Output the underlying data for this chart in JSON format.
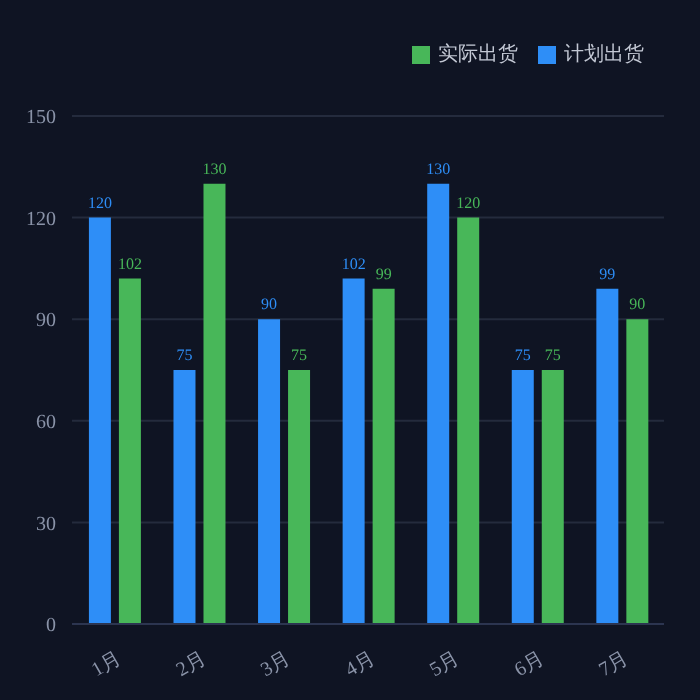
{
  "chart_data": {
    "type": "bar",
    "categories": [
      "1月",
      "2月",
      "3月",
      "4月",
      "5月",
      "6月",
      "7月"
    ],
    "series": [
      {
        "name": "计划出货",
        "color": "#2e8ef7",
        "values": [
          120,
          75,
          90,
          102,
          130,
          75,
          99
        ]
      },
      {
        "name": "实际出货",
        "color": "#48b759",
        "values": [
          102,
          130,
          75,
          99,
          120,
          75,
          90
        ]
      }
    ],
    "ylim": [
      0,
      150
    ],
    "yticks": [
      0,
      30,
      60,
      90,
      120,
      150
    ],
    "grid": "y",
    "legend": "top right",
    "data_labels": true
  }
}
